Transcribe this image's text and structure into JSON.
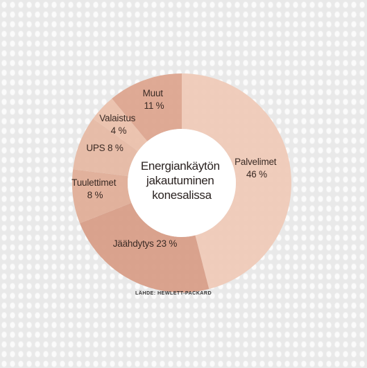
{
  "chart_data": {
    "type": "pie",
    "title": "Energiankäytön jakautuminen konesalissa",
    "title_lines": [
      "Energiankäytön",
      "jakautuminen",
      "konesalissa"
    ],
    "source": "LÄHDE: HEWLETT-PACKARD",
    "unit": "%",
    "slices": [
      {
        "name": "Palvelimet",
        "value": 46,
        "label": "Palvelimet",
        "value_label": "46 %",
        "color": "#efc9b6"
      },
      {
        "name": "Jäähdytys",
        "value": 23,
        "label": "Jäähdytys 23 %",
        "color": "#d79b84"
      },
      {
        "name": "Tuulettimet",
        "value": 8,
        "label": "Tuulettimet",
        "value_label": "8 %",
        "color": "#e0ab95"
      },
      {
        "name": "UPS",
        "value": 8,
        "label": "UPS 8 %",
        "color": "#e5b7a2"
      },
      {
        "name": "Valaistus",
        "value": 4,
        "label": "Valaistus",
        "value_label": "4 %",
        "color": "#eabfa9"
      },
      {
        "name": "Muut",
        "value": 11,
        "label": "Muut",
        "value_label": "11 %",
        "color": "#dca38c"
      }
    ],
    "legend": "none"
  }
}
